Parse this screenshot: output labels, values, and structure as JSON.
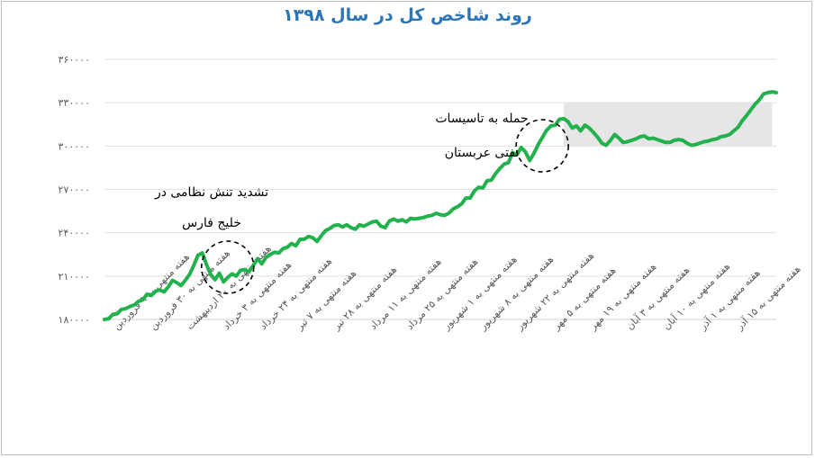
{
  "chart_data": {
    "type": "line",
    "title": "روند شاخص کل در سال ۱۳۹۸",
    "ylim": [
      180000,
      360000
    ],
    "y_ticks": [
      180000,
      210000,
      240000,
      270000,
      300000,
      330000,
      360000
    ],
    "y_tick_labels": [
      "۱۸۰۰۰۰",
      "۲۱۰۰۰۰",
      "۲۴۰۰۰۰",
      "۲۷۰۰۰۰",
      "۳۰۰۰۰۰",
      "۳۳۰۰۰۰",
      "۳۶۰۰۰۰"
    ],
    "grid": true,
    "line_color": "#22b14c",
    "x_tick_labels": [
      "هفته منتهی به ۹ فروردین",
      "هفته منتهی به ۳۰ فروردین",
      "هفته منتهی به ۲۰ اردیبهشت",
      "هفته منتهی به ۳ خرداد",
      "هفته منتهی به ۲۴ خرداد",
      "هفته منتهی به ۷ تیر",
      "هفته منتهی به ۲۸ تیر",
      "هفته منتهی به ۱۱ مرداد",
      "هفته منتهی به ۲۵ مرداد",
      "هفته منتهی به ۱ شهریور",
      "هفته منتهی به ۸ شهریور",
      "هفته منتهی به ۲۲ شهریور",
      "هفته منتهی به ۵ مهر",
      "هفته منتهی به ۱۹ مهر",
      "هفته منتهی به ۳ آبان",
      "هفته منتهی به ۱۰ آبان",
      "هفته منتهی به ۱ آذر",
      "هفته منتهی به ۱۵ آذر"
    ],
    "values": [
      180000,
      180500,
      183500,
      184000,
      187000,
      187500,
      189000,
      190000,
      192500,
      193500,
      197500,
      196500,
      199500,
      200500,
      199000,
      202500,
      207000,
      205500,
      203500,
      207000,
      211000,
      217500,
      224500,
      226000,
      218000,
      211000,
      207500,
      212000,
      206000,
      209000,
      211500,
      210000,
      214000,
      214500,
      213000,
      217500,
      222000,
      218500,
      223000,
      225000,
      226500,
      226000,
      229000,
      230000,
      232500,
      231000,
      235500,
      235500,
      237500,
      236500,
      234000,
      238000,
      241500,
      243000,
      245000,
      245500,
      244000,
      245500,
      243500,
      242500,
      245500,
      244500,
      246000,
      247500,
      248000,
      244500,
      243500,
      248000,
      249500,
      248000,
      249000,
      247500,
      250000,
      249500,
      250000,
      250500,
      251500,
      252000,
      253500,
      252500,
      252000,
      253500,
      256500,
      258000,
      260000,
      264000,
      264000,
      269000,
      271500,
      271000,
      276000,
      276500,
      281000,
      284500,
      287500,
      288500,
      295500,
      294000,
      299000,
      296000,
      290000,
      295000,
      301000,
      306000,
      311000,
      314000,
      314500,
      318500,
      319000,
      317000,
      312500,
      314000,
      310500,
      314500,
      312500,
      309500,
      306000,
      302000,
      300500,
      304000,
      308000,
      305500,
      302500,
      303000,
      304000,
      305000,
      306500,
      307000,
      305000,
      305500,
      304500,
      303500,
      302500,
      302500,
      304000,
      304500,
      304000,
      302000,
      300500,
      301000,
      302000,
      303000,
      303500,
      304500,
      305000,
      306500,
      307000,
      308000,
      310500,
      313000,
      317500,
      321000,
      325000,
      329000,
      332000,
      336000,
      337000,
      337500,
      337000
    ],
    "annotations": [
      {
        "text_line1": "تشدید تنش نظامی در",
        "text_line2": "خلیج فارس"
      },
      {
        "text_line1": "حمله به تاسیسات",
        "text_line2": "نفتی عربستان"
      }
    ],
    "shaded_range": {
      "from_index": 108,
      "to_index": 157,
      "y_from": 300000,
      "y_to": 330000,
      "color": "#e6e6e6"
    }
  }
}
